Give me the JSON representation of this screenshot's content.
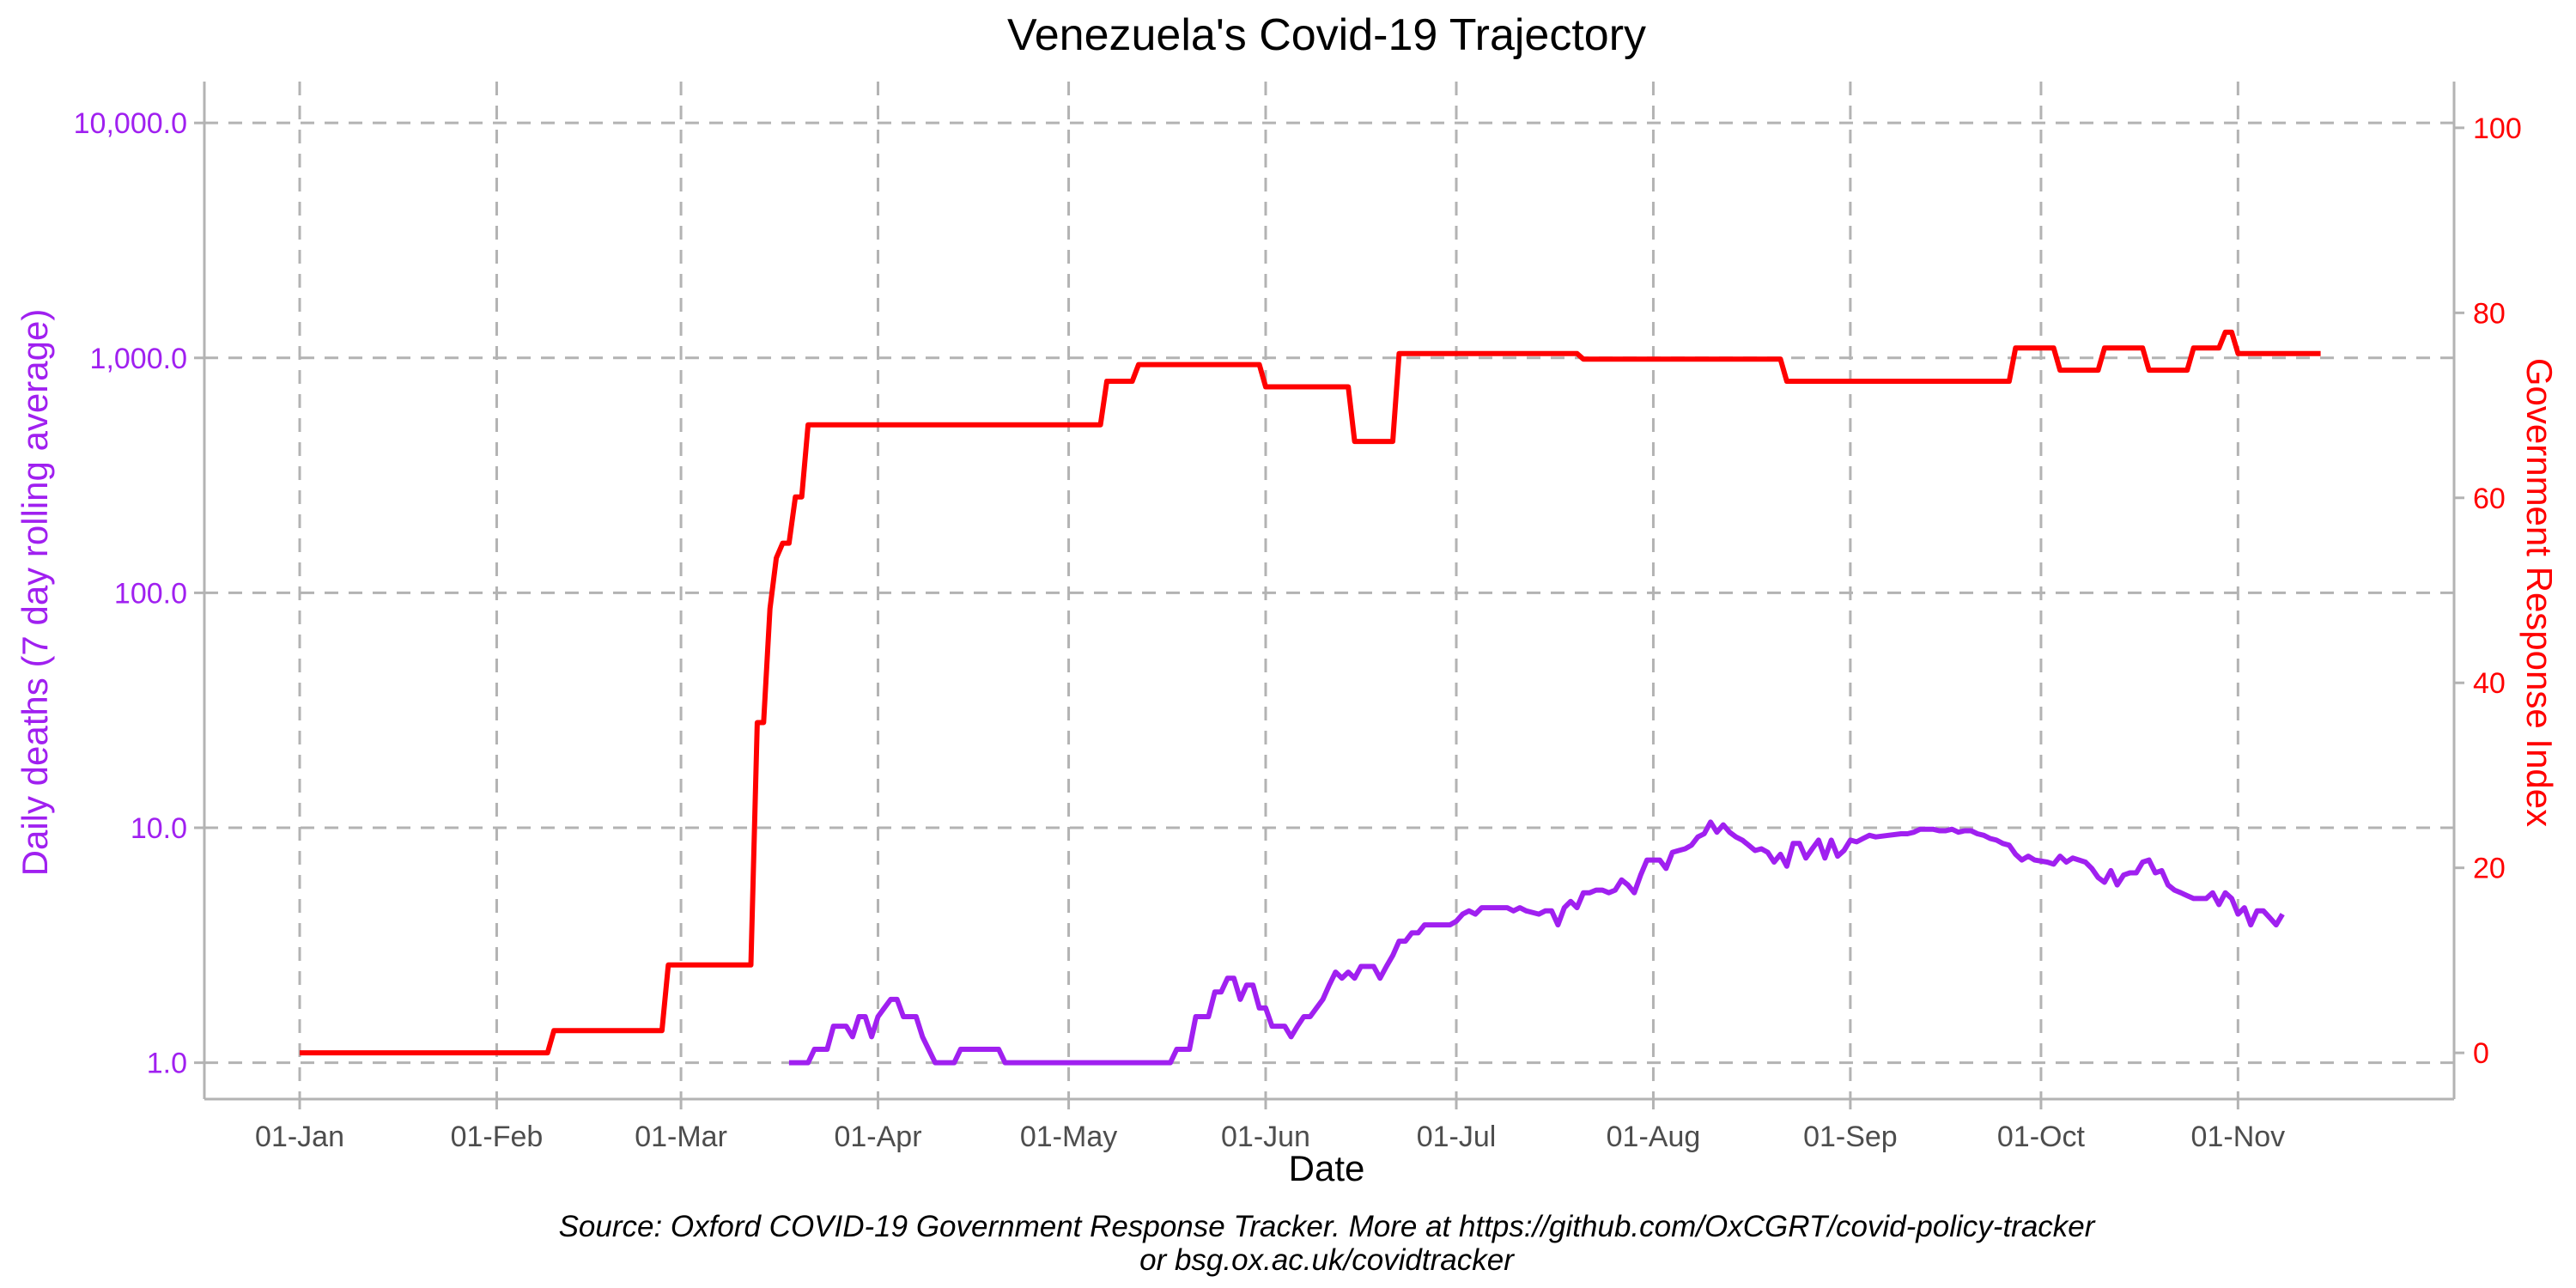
{
  "chart_data": {
    "type": "line",
    "title": "Venezuela's Covid-19 Trajectory",
    "xlabel": "Date",
    "ylabel_left": "Daily deaths (7 day rolling average)",
    "ylabel_right": "Government Response Index",
    "caption_line1": "Source: Oxford COVID-19 Government Response Tracker. More at https://github.com/OxCGRT/covid-policy-tracker",
    "caption_line2": "or bsg.ox.ac.uk/covidtracker",
    "x_ticks": [
      {
        "label": "01-Jan",
        "date": "2020-01-01"
      },
      {
        "label": "01-Feb",
        "date": "2020-02-01"
      },
      {
        "label": "01-Mar",
        "date": "2020-03-01"
      },
      {
        "label": "01-Apr",
        "date": "2020-04-01"
      },
      {
        "label": "01-May",
        "date": "2020-05-01"
      },
      {
        "label": "01-Jun",
        "date": "2020-06-01"
      },
      {
        "label": "01-Jul",
        "date": "2020-07-01"
      },
      {
        "label": "01-Aug",
        "date": "2020-08-01"
      },
      {
        "label": "01-Sep",
        "date": "2020-09-01"
      },
      {
        "label": "01-Oct",
        "date": "2020-10-01"
      },
      {
        "label": "01-Nov",
        "date": "2020-11-01"
      }
    ],
    "xlim": [
      "2019-12-17",
      "2020-12-05"
    ],
    "y_left": {
      "scale": "log10",
      "lim": [
        0.7,
        15000
      ],
      "ticks": [
        {
          "value": 1,
          "label": "1.0"
        },
        {
          "value": 10,
          "label": "10.0"
        },
        {
          "value": 100,
          "label": "100.0"
        },
        {
          "value": 1000,
          "label": "1,000.0"
        },
        {
          "value": 10000,
          "label": "10,000.0"
        }
      ],
      "color": "#a020f0"
    },
    "y_right": {
      "scale": "linear",
      "lim": [
        -5,
        105
      ],
      "ticks": [
        {
          "value": 0,
          "label": "0"
        },
        {
          "value": 20,
          "label": "20"
        },
        {
          "value": 40,
          "label": "40"
        },
        {
          "value": 60,
          "label": "60"
        },
        {
          "value": 80,
          "label": "80"
        },
        {
          "value": 100,
          "label": "100"
        }
      ],
      "color": "#ff0000"
    },
    "grid": true,
    "series": [
      {
        "name": "Government Response Index",
        "axis": "right",
        "color": "#ff0000",
        "points": [
          [
            "2020-01-01",
            0
          ],
          [
            "2020-02-09",
            0
          ],
          [
            "2020-02-10",
            2.4
          ],
          [
            "2020-02-27",
            2.4
          ],
          [
            "2020-02-28",
            9.5
          ],
          [
            "2020-03-12",
            9.5
          ],
          [
            "2020-03-13",
            35.7
          ],
          [
            "2020-03-14",
            35.7
          ],
          [
            "2020-03-15",
            48
          ],
          [
            "2020-03-16",
            53.5
          ],
          [
            "2020-03-17",
            55.1
          ],
          [
            "2020-03-18",
            55.1
          ],
          [
            "2020-03-19",
            60.1
          ],
          [
            "2020-03-20",
            60.1
          ],
          [
            "2020-03-21",
            67.9
          ],
          [
            "2020-05-06",
            67.9
          ],
          [
            "2020-05-07",
            72.6
          ],
          [
            "2020-05-11",
            72.6
          ],
          [
            "2020-05-12",
            74.4
          ],
          [
            "2020-05-31",
            74.4
          ],
          [
            "2020-06-01",
            72.0
          ],
          [
            "2020-06-14",
            72.0
          ],
          [
            "2020-06-15",
            66.1
          ],
          [
            "2020-06-21",
            66.1
          ],
          [
            "2020-06-22",
            75.6
          ],
          [
            "2020-07-20",
            75.6
          ],
          [
            "2020-07-21",
            75.0
          ],
          [
            "2020-08-21",
            75.0
          ],
          [
            "2020-08-22",
            72.6
          ],
          [
            "2020-09-26",
            72.6
          ],
          [
            "2020-09-27",
            76.2
          ],
          [
            "2020-10-03",
            76.2
          ],
          [
            "2020-10-04",
            73.8
          ],
          [
            "2020-10-10",
            73.8
          ],
          [
            "2020-10-11",
            76.2
          ],
          [
            "2020-10-17",
            76.2
          ],
          [
            "2020-10-18",
            73.8
          ],
          [
            "2020-10-24",
            73.8
          ],
          [
            "2020-10-25",
            76.2
          ],
          [
            "2020-10-29",
            76.2
          ],
          [
            "2020-10-30",
            77.9
          ],
          [
            "2020-10-31",
            77.9
          ],
          [
            "2020-11-01",
            75.6
          ],
          [
            "2020-11-14",
            75.6
          ]
        ]
      },
      {
        "name": "Daily deaths (7 day rolling average)",
        "axis": "left",
        "color": "#a020f0",
        "points": [
          [
            "2020-03-18",
            1.0
          ],
          [
            "2020-03-21",
            1.0
          ],
          [
            "2020-03-22",
            1.14
          ],
          [
            "2020-03-24",
            1.14
          ],
          [
            "2020-03-25",
            1.43
          ],
          [
            "2020-03-27",
            1.43
          ],
          [
            "2020-03-28",
            1.29
          ],
          [
            "2020-03-29",
            1.57
          ],
          [
            "2020-03-30",
            1.57
          ],
          [
            "2020-03-31",
            1.29
          ],
          [
            "2020-04-01",
            1.57
          ],
          [
            "2020-04-02",
            1.71
          ],
          [
            "2020-04-03",
            1.86
          ],
          [
            "2020-04-04",
            1.86
          ],
          [
            "2020-04-05",
            1.57
          ],
          [
            "2020-04-07",
            1.57
          ],
          [
            "2020-04-08",
            1.29
          ],
          [
            "2020-04-10",
            1.0
          ],
          [
            "2020-04-13",
            1.0
          ],
          [
            "2020-04-14",
            1.14
          ],
          [
            "2020-04-20",
            1.14
          ],
          [
            "2020-04-21",
            1.0
          ],
          [
            "2020-05-17",
            1.0
          ],
          [
            "2020-05-18",
            1.14
          ],
          [
            "2020-05-20",
            1.14
          ],
          [
            "2020-05-21",
            1.57
          ],
          [
            "2020-05-23",
            1.57
          ],
          [
            "2020-05-24",
            2.0
          ],
          [
            "2020-05-25",
            2.0
          ],
          [
            "2020-05-26",
            2.29
          ],
          [
            "2020-05-27",
            2.29
          ],
          [
            "2020-05-28",
            1.86
          ],
          [
            "2020-05-29",
            2.14
          ],
          [
            "2020-05-30",
            2.14
          ],
          [
            "2020-05-31",
            1.71
          ],
          [
            "2020-06-01",
            1.71
          ],
          [
            "2020-06-02",
            1.43
          ],
          [
            "2020-06-04",
            1.43
          ],
          [
            "2020-06-05",
            1.29
          ],
          [
            "2020-06-06",
            1.43
          ],
          [
            "2020-06-07",
            1.57
          ],
          [
            "2020-06-08",
            1.57
          ],
          [
            "2020-06-09",
            1.71
          ],
          [
            "2020-06-10",
            1.86
          ],
          [
            "2020-06-11",
            2.14
          ],
          [
            "2020-06-12",
            2.43
          ],
          [
            "2020-06-13",
            2.29
          ],
          [
            "2020-06-14",
            2.43
          ],
          [
            "2020-06-15",
            2.29
          ],
          [
            "2020-06-16",
            2.57
          ],
          [
            "2020-06-18",
            2.57
          ],
          [
            "2020-06-19",
            2.29
          ],
          [
            "2020-06-20",
            2.57
          ],
          [
            "2020-06-21",
            2.86
          ],
          [
            "2020-06-22",
            3.29
          ],
          [
            "2020-06-23",
            3.29
          ],
          [
            "2020-06-24",
            3.57
          ],
          [
            "2020-06-25",
            3.57
          ],
          [
            "2020-06-26",
            3.86
          ],
          [
            "2020-06-30",
            3.86
          ],
          [
            "2020-07-01",
            4.0
          ],
          [
            "2020-07-02",
            4.29
          ],
          [
            "2020-07-03",
            4.43
          ],
          [
            "2020-07-04",
            4.29
          ],
          [
            "2020-07-05",
            4.57
          ],
          [
            "2020-07-09",
            4.57
          ],
          [
            "2020-07-10",
            4.43
          ],
          [
            "2020-07-11",
            4.57
          ],
          [
            "2020-07-12",
            4.43
          ],
          [
            "2020-07-14",
            4.29
          ],
          [
            "2020-07-15",
            4.43
          ],
          [
            "2020-07-16",
            4.43
          ],
          [
            "2020-07-17",
            3.86
          ],
          [
            "2020-07-18",
            4.57
          ],
          [
            "2020-07-19",
            4.86
          ],
          [
            "2020-07-20",
            4.57
          ],
          [
            "2020-07-21",
            5.29
          ],
          [
            "2020-07-22",
            5.29
          ],
          [
            "2020-07-23",
            5.43
          ],
          [
            "2020-07-24",
            5.43
          ],
          [
            "2020-07-25",
            5.29
          ],
          [
            "2020-07-26",
            5.43
          ],
          [
            "2020-07-27",
            6.0
          ],
          [
            "2020-07-28",
            5.71
          ],
          [
            "2020-07-29",
            5.29
          ],
          [
            "2020-07-30",
            6.29
          ],
          [
            "2020-07-31",
            7.29
          ],
          [
            "2020-08-02",
            7.29
          ],
          [
            "2020-08-03",
            6.71
          ],
          [
            "2020-08-04",
            7.86
          ],
          [
            "2020-08-05",
            8.0
          ],
          [
            "2020-08-06",
            8.14
          ],
          [
            "2020-08-07",
            8.43
          ],
          [
            "2020-08-08",
            9.14
          ],
          [
            "2020-08-09",
            9.43
          ],
          [
            "2020-08-10",
            10.57
          ],
          [
            "2020-08-11",
            9.57
          ],
          [
            "2020-08-12",
            10.29
          ],
          [
            "2020-08-13",
            9.57
          ],
          [
            "2020-08-14",
            9.14
          ],
          [
            "2020-08-15",
            8.86
          ],
          [
            "2020-08-16",
            8.43
          ],
          [
            "2020-08-17",
            8.0
          ],
          [
            "2020-08-18",
            8.14
          ],
          [
            "2020-08-19",
            7.86
          ],
          [
            "2020-08-20",
            7.14
          ],
          [
            "2020-08-21",
            7.71
          ],
          [
            "2020-08-22",
            6.86
          ],
          [
            "2020-08-23",
            8.57
          ],
          [
            "2020-08-24",
            8.57
          ],
          [
            "2020-08-25",
            7.43
          ],
          [
            "2020-08-26",
            8.14
          ],
          [
            "2020-08-27",
            8.86
          ],
          [
            "2020-08-28",
            7.43
          ],
          [
            "2020-08-29",
            8.86
          ],
          [
            "2020-08-30",
            7.57
          ],
          [
            "2020-08-31",
            8.0
          ],
          [
            "2020-09-01",
            8.86
          ],
          [
            "2020-09-02",
            8.71
          ],
          [
            "2020-09-03",
            9.0
          ],
          [
            "2020-09-04",
            9.29
          ],
          [
            "2020-09-05",
            9.14
          ],
          [
            "2020-09-07",
            9.29
          ],
          [
            "2020-09-09",
            9.43
          ],
          [
            "2020-09-10",
            9.43
          ],
          [
            "2020-09-11",
            9.57
          ],
          [
            "2020-09-12",
            9.86
          ],
          [
            "2020-09-14",
            9.86
          ],
          [
            "2020-09-15",
            9.71
          ],
          [
            "2020-09-16",
            9.71
          ],
          [
            "2020-09-17",
            9.86
          ],
          [
            "2020-09-18",
            9.57
          ],
          [
            "2020-09-19",
            9.71
          ],
          [
            "2020-09-20",
            9.71
          ],
          [
            "2020-09-21",
            9.43
          ],
          [
            "2020-09-22",
            9.29
          ],
          [
            "2020-09-23",
            9.0
          ],
          [
            "2020-09-24",
            8.86
          ],
          [
            "2020-09-25",
            8.57
          ],
          [
            "2020-09-26",
            8.43
          ],
          [
            "2020-09-27",
            7.71
          ],
          [
            "2020-09-28",
            7.29
          ],
          [
            "2020-09-29",
            7.57
          ],
          [
            "2020-09-30",
            7.29
          ],
          [
            "2020-10-02",
            7.14
          ],
          [
            "2020-10-03",
            7.0
          ],
          [
            "2020-10-04",
            7.57
          ],
          [
            "2020-10-05",
            7.14
          ],
          [
            "2020-10-06",
            7.43
          ],
          [
            "2020-10-07",
            7.29
          ],
          [
            "2020-10-08",
            7.14
          ],
          [
            "2020-10-09",
            6.71
          ],
          [
            "2020-10-10",
            6.14
          ],
          [
            "2020-10-11",
            5.86
          ],
          [
            "2020-10-12",
            6.57
          ],
          [
            "2020-10-13",
            5.71
          ],
          [
            "2020-10-14",
            6.29
          ],
          [
            "2020-10-15",
            6.43
          ],
          [
            "2020-10-16",
            6.43
          ],
          [
            "2020-10-17",
            7.14
          ],
          [
            "2020-10-18",
            7.29
          ],
          [
            "2020-10-19",
            6.43
          ],
          [
            "2020-10-20",
            6.57
          ],
          [
            "2020-10-21",
            5.71
          ],
          [
            "2020-10-22",
            5.43
          ],
          [
            "2020-10-23",
            5.29
          ],
          [
            "2020-10-24",
            5.14
          ],
          [
            "2020-10-25",
            5.0
          ],
          [
            "2020-10-27",
            5.0
          ],
          [
            "2020-10-28",
            5.29
          ],
          [
            "2020-10-29",
            4.71
          ],
          [
            "2020-10-30",
            5.29
          ],
          [
            "2020-10-31",
            5.0
          ],
          [
            "2020-11-01",
            4.29
          ],
          [
            "2020-11-02",
            4.57
          ],
          [
            "2020-11-03",
            3.86
          ],
          [
            "2020-11-04",
            4.43
          ],
          [
            "2020-11-05",
            4.43
          ],
          [
            "2020-11-06",
            4.14
          ],
          [
            "2020-11-07",
            3.86
          ],
          [
            "2020-11-08",
            4.29
          ]
        ]
      }
    ]
  }
}
